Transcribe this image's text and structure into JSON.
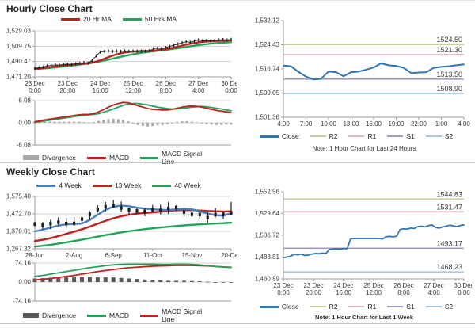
{
  "page": {
    "background": "#ffffff"
  },
  "sections": {
    "hourly": {
      "title": "Hourly Close Chart",
      "ma_legend": [
        {
          "label": "20 Hr MA",
          "color": "#c0211f"
        },
        {
          "label": "50 Hrs MA",
          "color": "#25a25a"
        }
      ],
      "macd_legend": [
        {
          "label": "Divergence",
          "color": "#a8a8a8"
        },
        {
          "label": "MACD",
          "color": "#c0211f"
        },
        {
          "label": "MACD Signal Line",
          "color": "#25a25a"
        }
      ],
      "levels_legend": [
        {
          "label": "Close",
          "color": "#2f74b3"
        },
        {
          "label": "R2",
          "color": "#c8cd9c"
        },
        {
          "label": "R1",
          "color": "#e2b6bc"
        },
        {
          "label": "S1",
          "color": "#a59bc6"
        },
        {
          "label": "S2",
          "color": "#a5cbe2"
        }
      ],
      "note": "Note: 1 Hour Chart for Last 24 Hours"
    },
    "weekly": {
      "title": "Weekly Close Chart",
      "ma_legend": [
        {
          "label": "4 Week",
          "color": "#4a7fc1"
        },
        {
          "label": "13 Week",
          "color": "#c0211f"
        },
        {
          "label": "40 Week",
          "color": "#25a25a"
        }
      ],
      "macd_legend": [
        {
          "label": "Divergence",
          "color": "#5a5a5a"
        },
        {
          "label": "MACD",
          "color": "#25a25a"
        },
        {
          "label": "MACD Signal Line",
          "color": "#c0211f"
        }
      ],
      "levels_legend": [
        {
          "label": "Close",
          "color": "#2f74b3"
        },
        {
          "label": "R2",
          "color": "#c8cd9c"
        },
        {
          "label": "R1",
          "color": "#e2b6bc"
        },
        {
          "label": "S1",
          "color": "#a59bc6"
        },
        {
          "label": "S2",
          "color": "#a5cbe2"
        }
      ],
      "note": "Note: 1 Hour Chart for Last 1 Week"
    }
  },
  "chart_data": [
    {
      "id": "hourly_main",
      "type": "line",
      "grid": true,
      "ylim": [
        1471.2,
        1529.03
      ],
      "yticks": [
        {
          "v": 1529.03,
          "label": "1,529.03"
        },
        {
          "v": 1509.75,
          "label": "1,509.75"
        },
        {
          "v": 1490.47,
          "label": "1,490.47"
        },
        {
          "v": 1471.2,
          "label": "1,471.20"
        }
      ],
      "xticks": [
        [
          "23 Dec",
          "0:00"
        ],
        [
          "23 Dec",
          "20:00"
        ],
        [
          "24 Dec",
          "16:00"
        ],
        [
          "25 Dec",
          "12:00"
        ],
        [
          "26 Dec",
          "8:00"
        ],
        [
          "27 Dec",
          "4:00"
        ],
        [
          "30 Dec",
          "0:00"
        ]
      ],
      "series": [
        {
          "name": "50 Hrs MA",
          "type": "line",
          "color": "#25a25a",
          "width": 2.4,
          "values": [
            1481.2,
            1481.4,
            1481.7,
            1482.1,
            1482.6,
            1483.1,
            1483.6,
            1484.2,
            1484.8,
            1485.4,
            1486.0,
            1486.6,
            1487.3,
            1488.0,
            1488.8,
            1489.7,
            1490.7,
            1491.8,
            1492.9,
            1494.0,
            1495.2,
            1496.4,
            1497.5,
            1498.6,
            1499.6,
            1500.5,
            1501.3,
            1502.0,
            1502.7,
            1503.3,
            1503.9,
            1504.5,
            1505.1,
            1505.8,
            1506.5,
            1507.2,
            1508.0,
            1508.8,
            1509.6,
            1510.4,
            1511.1,
            1511.8,
            1512.4,
            1513.0,
            1513.5,
            1513.9,
            1514.3,
            1514.6,
            1514.9
          ]
        },
        {
          "name": "20 Hr MA",
          "type": "line",
          "color": "#c0211f",
          "width": 2.4,
          "values": [
            1481.6,
            1482.0,
            1482.4,
            1483.0,
            1483.6,
            1484.3,
            1485.0,
            1485.6,
            1486.1,
            1486.6,
            1487.0,
            1487.5,
            1488.0,
            1488.5,
            1489.2,
            1490.4,
            1492.0,
            1494.0,
            1496.0,
            1497.9,
            1499.5,
            1500.8,
            1501.8,
            1502.5,
            1503.0,
            1503.3,
            1503.5,
            1503.6,
            1503.8,
            1504.1,
            1504.6,
            1505.2,
            1506.0,
            1506.9,
            1508.0,
            1509.2,
            1510.5,
            1511.7,
            1512.8,
            1513.8,
            1514.6,
            1515.2,
            1515.7,
            1516.0,
            1516.3,
            1516.5,
            1516.7,
            1516.9,
            1517.1
          ]
        },
        {
          "name": "Close",
          "type": "ticks",
          "color": "#1f1f1f",
          "values": [
            1482.0,
            1482.6,
            1483.5,
            1485.0,
            1485.6,
            1486.3,
            1486.0,
            1486.8,
            1487.2,
            1486.6,
            1487.5,
            1488.2,
            1489.0,
            1488.4,
            1492.0,
            1497.5,
            1502.5,
            1503.2,
            1503.6,
            1503.1,
            1503.5,
            1503.2,
            1503.6,
            1503.3,
            1503.5,
            1503.4,
            1503.6,
            1503.5,
            1504.0,
            1506.5,
            1507.2,
            1506.6,
            1508.2,
            1509.5,
            1511.0,
            1512.5,
            1514.0,
            1515.5,
            1514.6,
            1516.2,
            1517.6,
            1516.6,
            1517.0,
            1516.5,
            1517.1,
            1517.6,
            1518.0,
            1517.6,
            1518.3
          ]
        }
      ]
    },
    {
      "id": "hourly_macd",
      "type": "line",
      "grid": true,
      "ylim": [
        -6.08,
        6.08
      ],
      "yticks": [
        {
          "v": 6.08,
          "label": "6.08"
        },
        {
          "v": 0,
          "label": "0.00"
        },
        {
          "v": -6.08,
          "label": "-6.08"
        }
      ],
      "series": [
        {
          "name": "Divergence",
          "type": "bars",
          "color": "#a8a8a8",
          "values": [
            0.15,
            0.2,
            0.3,
            0.3,
            0.3,
            0.3,
            0.3,
            0.3,
            0.3,
            0.3,
            0.2,
            0.1,
            0.2,
            0.5,
            0.7,
            1.0,
            1.1,
            1.0,
            0.8,
            0.4,
            -0.2,
            -0.6,
            -0.8,
            -1.0,
            -0.9,
            -0.7,
            -0.6,
            -0.4,
            -0.1,
            0.2,
            0.4,
            0.4,
            0.3,
            0.1,
            -0.2,
            -0.4,
            -0.5,
            -0.6,
            -0.6,
            -0.5,
            -0.5
          ]
        },
        {
          "name": "MACD Signal Line",
          "type": "line",
          "color": "#25a25a",
          "width": 1.8,
          "values": [
            0.15,
            0.3,
            0.5,
            0.7,
            0.9,
            1.1,
            1.3,
            1.5,
            1.7,
            1.9,
            2.1,
            2.2,
            2.3,
            2.5,
            2.9,
            3.3,
            3.8,
            4.3,
            4.8,
            5.1,
            5.3,
            5.3,
            5.1,
            4.9,
            4.6,
            4.3,
            4.1,
            3.9,
            3.8,
            3.8,
            3.9,
            4.1,
            4.3,
            4.4,
            4.5,
            4.4,
            4.2,
            4.0,
            3.8,
            3.5,
            3.3
          ]
        },
        {
          "name": "MACD",
          "type": "line",
          "color": "#c0211f",
          "width": 1.8,
          "values": [
            0.3,
            0.5,
            0.8,
            1.0,
            1.2,
            1.4,
            1.6,
            1.8,
            2.0,
            2.2,
            2.3,
            2.3,
            2.5,
            3.0,
            3.6,
            4.3,
            4.9,
            5.3,
            5.6,
            5.5,
            5.1,
            4.7,
            4.3,
            3.9,
            3.7,
            3.6,
            3.5,
            3.5,
            3.7,
            4.0,
            4.3,
            4.5,
            4.6,
            4.5,
            4.3,
            4.0,
            3.7,
            3.4,
            3.2,
            3.0,
            2.8
          ]
        }
      ]
    },
    {
      "id": "hourly_levels",
      "type": "line",
      "grid": false,
      "ylim": [
        1501.36,
        1532.12
      ],
      "yticks": [
        {
          "v": 1532.12,
          "label": "1,532.12"
        },
        {
          "v": 1524.43,
          "label": "1,524.43"
        },
        {
          "v": 1516.74,
          "label": "1,516.74"
        },
        {
          "v": 1509.05,
          "label": "1,509.05"
        },
        {
          "v": 1501.36,
          "label": "1,501.36"
        }
      ],
      "xticks": [
        [
          "4:00"
        ],
        [
          "7:00"
        ],
        [
          "10:00"
        ],
        [
          "13:00"
        ],
        [
          "16:00"
        ],
        [
          "19:00"
        ],
        [
          "22:00"
        ],
        [
          "1:00"
        ],
        [
          "4:00"
        ]
      ],
      "levels": [
        {
          "name": "R2",
          "v": 1524.5,
          "label": "1524.50",
          "color": "#c8cd9c"
        },
        {
          "name": "R1",
          "v": 1521.3,
          "label": "1521.30",
          "color": "#e2b6bc"
        },
        {
          "name": "S1",
          "v": 1513.5,
          "label": "1513.50",
          "color": "#a59bc6"
        },
        {
          "name": "S2",
          "v": 1508.9,
          "label": "1508.90",
          "color": "#a5cbe2"
        }
      ],
      "series": [
        {
          "name": "Close",
          "type": "line",
          "color": "#2f74b3",
          "width": 2,
          "values": [
            1517.8,
            1517.6,
            1515.8,
            1514.3,
            1513.4,
            1513.6,
            1515.9,
            1515.7,
            1514.4,
            1515.7,
            1515.9,
            1516.5,
            1517.2,
            1518.5,
            1517.9,
            1517.7,
            1517.1,
            1515.4,
            1515.6,
            1515.7,
            1517.1,
            1517.4,
            1517.6,
            1517.9,
            1518.2
          ]
        }
      ]
    },
    {
      "id": "weekly_main",
      "type": "line",
      "grid": true,
      "ylim": [
        1267.32,
        1575.4
      ],
      "yticks": [
        {
          "v": 1575.4,
          "label": "1,575.40"
        },
        {
          "v": 1472.7,
          "label": "1,472.70"
        },
        {
          "v": 1370.01,
          "label": "1,370.01"
        },
        {
          "v": 1267.32,
          "label": "1,267.32"
        }
      ],
      "xticks": [
        [
          "28-Jun"
        ],
        [
          "2-Aug"
        ],
        [
          "6-Sep"
        ],
        [
          "11-Oct"
        ],
        [
          "15-Nov"
        ],
        [
          "20-Dec"
        ]
      ],
      "series": [
        {
          "name": "40 Week",
          "type": "line",
          "color": "#25a25a",
          "width": 2.4,
          "values": [
            1280,
            1285,
            1291,
            1298,
            1305,
            1313,
            1321,
            1330,
            1339,
            1348,
            1356,
            1364,
            1371,
            1377,
            1383,
            1388,
            1393,
            1397,
            1401,
            1405,
            1408,
            1411,
            1414,
            1416,
            1418,
            1421
          ]
        },
        {
          "name": "13 Week",
          "type": "line",
          "color": "#c0211f",
          "width": 2.4,
          "values": [
            1313,
            1320,
            1330,
            1342,
            1355,
            1368,
            1382,
            1398,
            1415,
            1432,
            1447,
            1459,
            1468,
            1474,
            1478,
            1482,
            1486,
            1490,
            1494,
            1496,
            1495,
            1493,
            1490,
            1488,
            1487,
            1488
          ]
        },
        {
          "name": "4 Week",
          "type": "line",
          "color": "#4a7fc1",
          "width": 2.4,
          "values": [
            1370,
            1380,
            1392,
            1404,
            1411,
            1413,
            1416,
            1437,
            1468,
            1497,
            1515,
            1522,
            1518,
            1510,
            1504,
            1500,
            1497,
            1496,
            1499,
            1503,
            1500,
            1488,
            1475,
            1465,
            1462,
            1478
          ]
        },
        {
          "name": "Close",
          "type": "candles",
          "color": "#1f1f1f",
          "values": [
            1413,
            1406,
            1415,
            1424,
            1416,
            1417,
            1442,
            1470,
            1500,
            1515,
            1522,
            1508,
            1496,
            1490,
            1487,
            1497,
            1494,
            1505,
            1510,
            1483,
            1470,
            1469,
            1451,
            1470,
            1471,
            1478
          ]
        }
      ]
    },
    {
      "id": "weekly_macd",
      "type": "line",
      "grid": true,
      "ylim": [
        -74.16,
        74.16
      ],
      "yticks": [
        {
          "v": 74.16,
          "label": "74.16"
        },
        {
          "v": 0,
          "label": "0.00"
        },
        {
          "v": -74.16,
          "label": "-74.16"
        }
      ],
      "series": [
        {
          "name": "Divergence",
          "type": "bars",
          "color": "#5a5a5a",
          "values": [
            14,
            15,
            17,
            18,
            19,
            20,
            20,
            20,
            19,
            19,
            18,
            16,
            14,
            12,
            10,
            8,
            6,
            5,
            5,
            5,
            4,
            3,
            1,
            0,
            -1,
            -1
          ]
        },
        {
          "name": "MACD Signal Line",
          "type": "line",
          "color": "#c0211f",
          "width": 1.8,
          "values": [
            8,
            11,
            14,
            18,
            22,
            26,
            31,
            36,
            41,
            45,
            49,
            53,
            56,
            58,
            60,
            62,
            63,
            64,
            65,
            65,
            65,
            64,
            63,
            61,
            59,
            58
          ]
        },
        {
          "name": "MACD",
          "type": "line",
          "color": "#25a25a",
          "width": 1.8,
          "values": [
            22,
            26,
            31,
            36,
            41,
            46,
            51,
            56,
            60,
            64,
            67,
            69,
            70,
            70,
            70,
            70,
            69,
            69,
            70,
            70,
            69,
            67,
            64,
            61,
            58,
            57
          ]
        }
      ]
    },
    {
      "id": "weekly_levels",
      "type": "line",
      "grid": false,
      "ylim": [
        1460.89,
        1552.56
      ],
      "yticks": [
        {
          "v": 1552.56,
          "label": "1,552.56"
        },
        {
          "v": 1529.64,
          "label": "1,529.64"
        },
        {
          "v": 1506.72,
          "label": "1,506.72"
        },
        {
          "v": 1483.81,
          "label": "1,483.81"
        },
        {
          "v": 1460.89,
          "label": "1,460.89"
        }
      ],
      "xticks": [
        [
          "23 Dec",
          "0:00"
        ],
        [
          "23 Dec",
          "20:00"
        ],
        [
          "24 Dec",
          "16:00"
        ],
        [
          "25 Dec",
          "12:00"
        ],
        [
          "26 Dec",
          "8:00"
        ],
        [
          "27 Dec",
          "4:00"
        ],
        [
          "30 Dec",
          "0:00"
        ]
      ],
      "levels": [
        {
          "name": "R2",
          "v": 1544.83,
          "label": "1544.83",
          "color": "#c8cd9c"
        },
        {
          "name": "R1",
          "v": 1531.47,
          "label": "1531.47",
          "color": "#e2b6bc"
        },
        {
          "name": "S1",
          "v": 1493.17,
          "label": "1493.17",
          "color": "#a59bc6"
        },
        {
          "name": "S2",
          "v": 1468.23,
          "label": "1468.23",
          "color": "#a5cbe2"
        }
      ],
      "series": [
        {
          "name": "Close",
          "type": "line",
          "color": "#2f74b3",
          "width": 1.8,
          "values": [
            1483.3,
            1483.8,
            1484.6,
            1486.8,
            1486.2,
            1486.9,
            1485.6,
            1485.9,
            1486.9,
            1487.6,
            1487.3,
            1488.0,
            1487.6,
            1491.9,
            1492.3,
            1492.6,
            1492.3,
            1492.9,
            1492.6,
            1503.0,
            1503.3,
            1503.4,
            1503.4,
            1503.4,
            1503.4,
            1503.4,
            1503.4,
            1503.3,
            1502.9,
            1505.3,
            1505.6,
            1505.1,
            1505.9,
            1512.9,
            1513.6,
            1513.3,
            1514.3,
            1513.9,
            1515.9,
            1516.3,
            1515.6,
            1516.9,
            1517.6,
            1515.0,
            1514.3,
            1515.6,
            1516.3,
            1517.3,
            1516.6,
            1515.9,
            1517.0,
            1517.6
          ]
        }
      ]
    }
  ]
}
